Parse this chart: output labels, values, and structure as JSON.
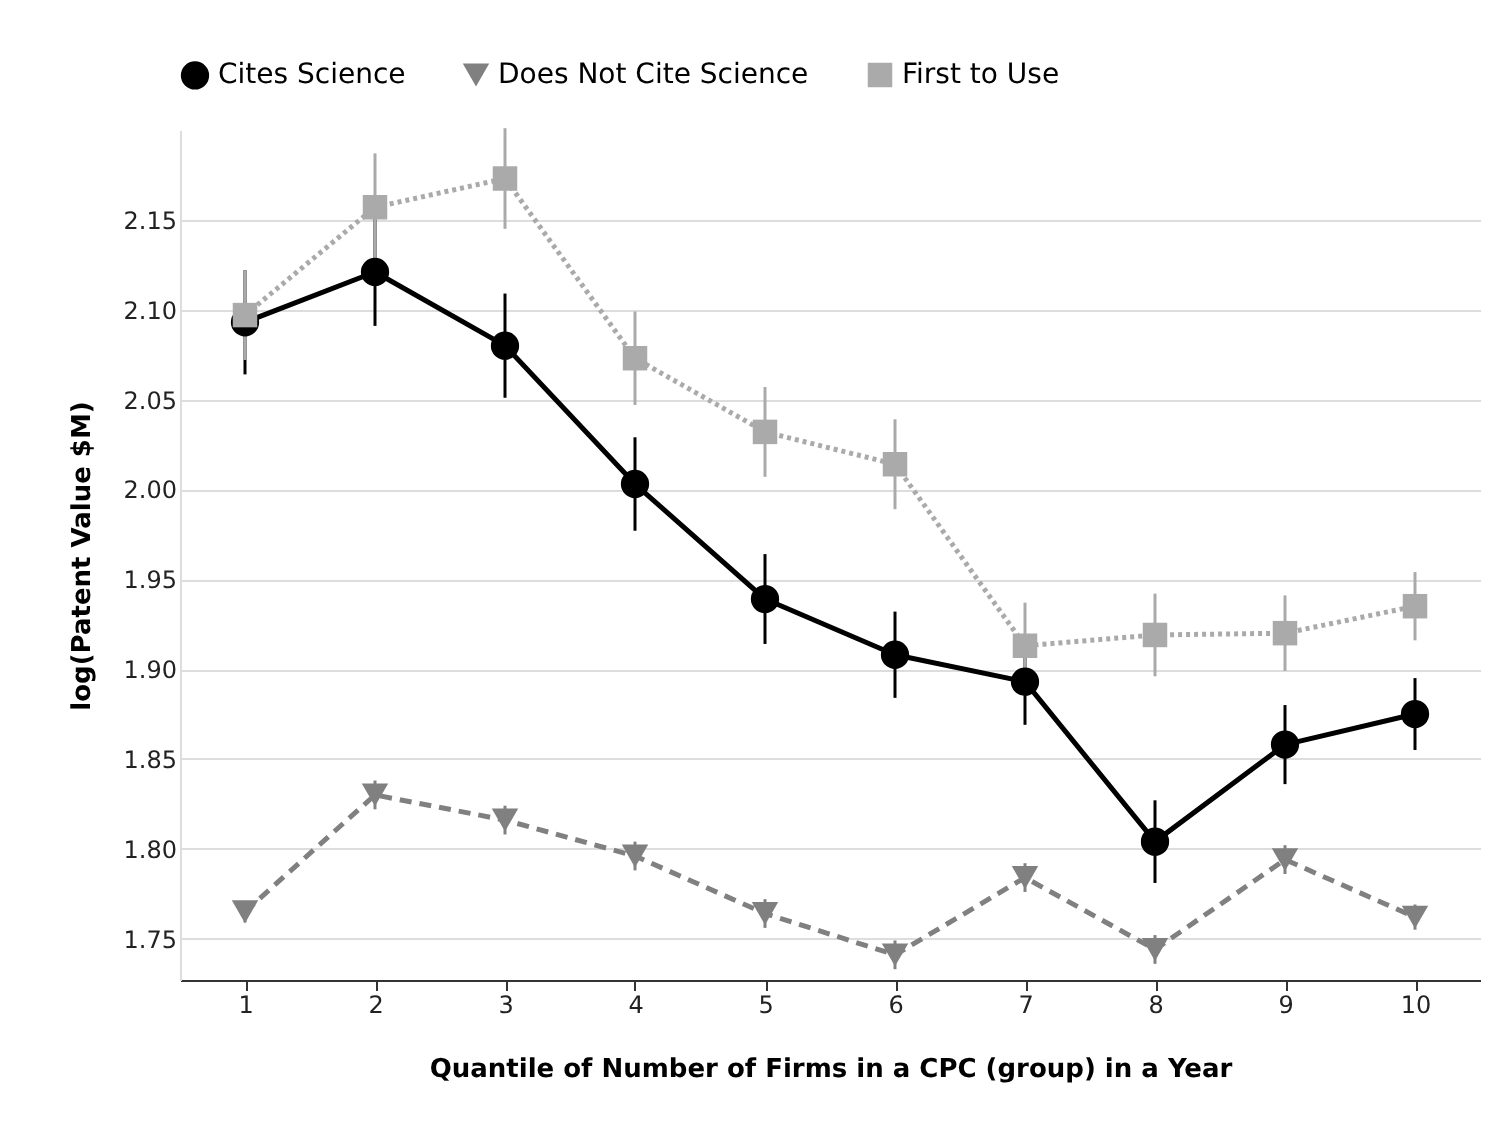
{
  "chart_data": {
    "type": "line",
    "xlabel": "Quantile of Number of Firms in a CPC (group) in a Year",
    "ylabel": "log(Patent Value $M)",
    "x": [
      1,
      2,
      3,
      4,
      5,
      6,
      7,
      8,
      9,
      10
    ],
    "xlim": [
      0.5,
      10.5
    ],
    "xticks": [
      1,
      2,
      3,
      4,
      5,
      6,
      7,
      8,
      9,
      10
    ],
    "ylim": [
      1.727,
      2.2
    ],
    "yticks": [
      1.75,
      {
        "value": 1.8,
        "label": "1.80"
      },
      1.85,
      {
        "value": 1.9,
        "label": "1.90"
      },
      1.95,
      {
        "value": 2.0,
        "label": "2.00"
      },
      2.05,
      {
        "value": 2.1,
        "label": "2.10"
      },
      2.15
    ],
    "grid": "y",
    "legend": "top",
    "series": [
      {
        "name": "Cites Science",
        "color": "#000000",
        "marker": "circle",
        "line_style": "solid",
        "values": [
          2.093,
          2.121,
          2.08,
          2.003,
          1.939,
          1.908,
          1.893,
          1.804,
          1.858,
          1.875
        ],
        "errors": [
          0.029,
          0.03,
          0.029,
          0.026,
          0.025,
          0.024,
          0.024,
          0.023,
          0.022,
          0.02
        ]
      },
      {
        "name": "Does Not Cite Science",
        "color": "#808080",
        "marker": "triangle",
        "line_style": "dashed",
        "values": [
          1.765,
          1.83,
          1.816,
          1.796,
          1.764,
          1.741,
          1.784,
          1.744,
          1.794,
          1.762
        ],
        "errors": [
          0.006,
          0.008,
          0.008,
          0.008,
          0.008,
          0.008,
          0.008,
          0.008,
          0.008,
          0.007
        ]
      },
      {
        "name": "First to Use",
        "color": "#aaaaaa",
        "marker": "square",
        "line_style": "dotted",
        "values": [
          2.097,
          2.157,
          2.173,
          2.073,
          2.032,
          2.014,
          1.913,
          1.919,
          1.92,
          1.935
        ],
        "errors": [
          0.025,
          0.03,
          0.028,
          0.026,
          0.025,
          0.025,
          0.024,
          0.023,
          0.021,
          0.019
        ]
      }
    ]
  }
}
